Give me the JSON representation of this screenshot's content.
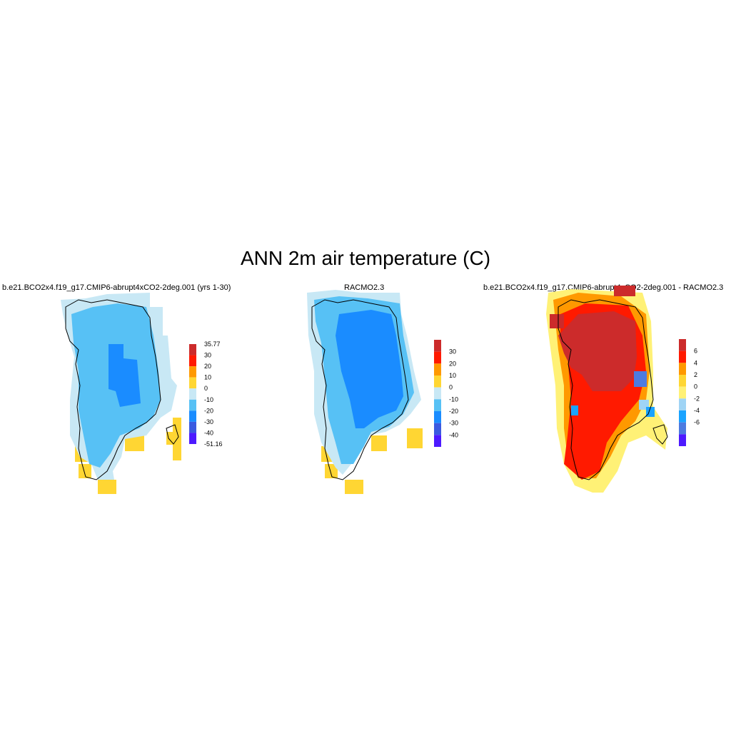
{
  "title": "ANN 2m air temperature (C)",
  "panels": [
    {
      "title": "b.e21.BCO2x4.f19_g17.CMIP6-abrupt4xCO2-2deg.001 (yrs 1-30)",
      "colorbar": {
        "colors": [
          "#cc2b2b",
          "#ff1a00",
          "#ff9900",
          "#ffd633",
          "#c8e8f5",
          "#57c1f5",
          "#1a8cff",
          "#3b5ae0",
          "#4d1aff"
        ],
        "labels": [
          "35.77",
          "30",
          "20",
          "10",
          "0",
          "-10",
          "-20",
          "-30",
          "-40",
          "-51.16"
        ]
      }
    },
    {
      "title": "RACMO2.3",
      "colorbar": {
        "colors": [
          "#cc2b2b",
          "#ff1a00",
          "#ff9900",
          "#ffd633",
          "#c8e8f5",
          "#57c1f5",
          "#1a8cff",
          "#3b5ae0",
          "#4d1aff"
        ],
        "labels": [
          "30",
          "20",
          "10",
          "0",
          "-10",
          "-20",
          "-30",
          "-40"
        ]
      }
    },
    {
      "title": "b.e21.BCO2x4.f19_g17.CMIP6-abrupt4xCO2-2deg.001 - RACMO2.3",
      "colorbar": {
        "colors": [
          "#cc2b2b",
          "#ff1a00",
          "#ff9900",
          "#ffd633",
          "#fff176",
          "#9fd4f5",
          "#1aa3ff",
          "#4d7be0",
          "#4d1aff"
        ],
        "labels": [
          "6",
          "4",
          "2",
          "0",
          "-2",
          "-4",
          "-6"
        ]
      }
    }
  ]
}
